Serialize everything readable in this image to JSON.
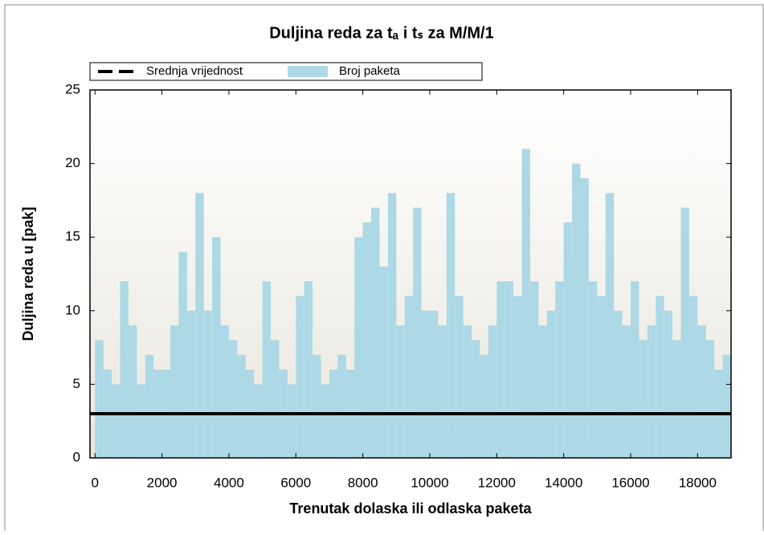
{
  "chart_data": {
    "type": "bar",
    "title": "Duljina reda za tₐ i tₛ za M/M/1",
    "xlabel": "Trenutak dolaska ili odlaska paketa",
    "ylabel": "Duljina reda u [pak]",
    "x": [
      0,
      250,
      500,
      750,
      1000,
      1250,
      1500,
      1750,
      2000,
      2250,
      2500,
      2750,
      3000,
      3250,
      3500,
      3750,
      4000,
      4250,
      4500,
      4750,
      5000,
      5250,
      5500,
      5750,
      6000,
      6250,
      6500,
      6750,
      7000,
      7250,
      7500,
      7750,
      8000,
      8250,
      8500,
      8750,
      9000,
      9250,
      9500,
      9750,
      10000,
      10250,
      10500,
      10750,
      11000,
      11250,
      11500,
      11750,
      12000,
      12250,
      12500,
      12750,
      13000,
      13250,
      13500,
      13750,
      14000,
      14250,
      14500,
      14750,
      15000,
      15250,
      15500,
      15750,
      16000,
      16250,
      16500,
      16750,
      17000,
      17250,
      17500,
      17750,
      18000,
      18250,
      18500,
      18750
    ],
    "series": [
      {
        "name": "Broj paketa",
        "color": "#add8e6",
        "values": [
          8,
          6,
          5,
          12,
          9,
          5,
          7,
          6,
          6,
          9,
          14,
          10,
          18,
          10,
          15,
          9,
          8,
          7,
          6,
          5,
          12,
          8,
          6,
          5,
          11,
          12,
          7,
          5,
          6,
          7,
          6,
          15,
          16,
          17,
          13,
          18,
          9,
          11,
          17,
          10,
          10,
          9,
          18,
          11,
          9,
          8,
          7,
          9,
          12,
          12,
          11,
          21,
          12,
          9,
          10,
          12,
          16,
          20,
          19,
          12,
          11,
          18,
          10,
          9,
          12,
          8,
          9,
          11,
          10,
          8,
          17,
          11,
          9,
          8,
          6,
          7
        ]
      }
    ],
    "mean": {
      "name": "Srednja vrijednost",
      "color": "#000000",
      "value": 3
    },
    "bar_width": 250,
    "xlim": [
      -150,
      19000
    ],
    "ylim": [
      0,
      25
    ],
    "xticks": [
      0,
      2000,
      4000,
      6000,
      8000,
      10000,
      12000,
      14000,
      16000,
      18000
    ],
    "yticks": [
      0,
      5,
      10,
      15,
      20,
      25
    ]
  }
}
